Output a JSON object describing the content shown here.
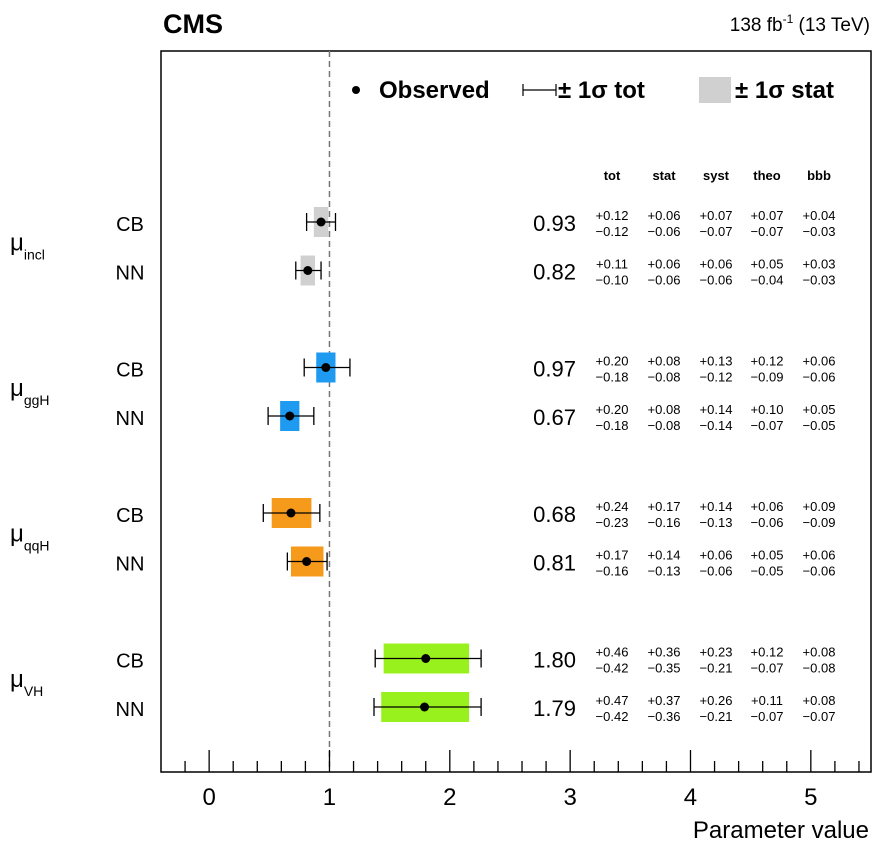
{
  "header": {
    "experiment": "CMS",
    "lumi_base": "138 fb",
    "lumi_sup": "-1",
    "lumi_energy": " (13 TeV)"
  },
  "legend": {
    "placement": "top",
    "observed": "Observed",
    "tot": "± 1σ tot",
    "stat": "± 1σ stat"
  },
  "columns": [
    "tot",
    "stat",
    "syst",
    "theo",
    "bbb"
  ],
  "chart_data": {
    "type": "scatter",
    "xlabel": "Parameter value",
    "xlim": [
      -0.4,
      5.5
    ],
    "xticks": [
      0,
      1,
      2,
      3,
      4,
      5
    ],
    "xtick_labels": [
      "0",
      "1",
      "2",
      "3",
      "4",
      "5"
    ],
    "reference_line": 1,
    "groups": [
      {
        "param": "μ",
        "sub": "incl",
        "color": "#d0d0d0",
        "rows": [
          {
            "label": "CB",
            "value": 0.93,
            "value_text": "0.93",
            "up": [
              "+0.12",
              "+0.06",
              "+0.07",
              "+0.07",
              "+0.04"
            ],
            "down": [
              "−0.12",
              "−0.06",
              "−0.07",
              "−0.07",
              "−0.03"
            ],
            "tot": [
              0.12,
              0.12
            ],
            "stat": [
              0.06,
              0.06
            ]
          },
          {
            "label": "NN",
            "value": 0.82,
            "value_text": "0.82",
            "up": [
              "+0.11",
              "+0.06",
              "+0.06",
              "+0.05",
              "+0.03"
            ],
            "down": [
              "−0.10",
              "−0.06",
              "−0.06",
              "−0.04",
              "−0.03"
            ],
            "tot": [
              0.11,
              0.1
            ],
            "stat": [
              0.06,
              0.06
            ]
          }
        ]
      },
      {
        "param": "μ",
        "sub": "ggH",
        "color": "#1e9bf0",
        "rows": [
          {
            "label": "CB",
            "value": 0.97,
            "value_text": "0.97",
            "up": [
              "+0.20",
              "+0.08",
              "+0.13",
              "+0.12",
              "+0.06"
            ],
            "down": [
              "−0.18",
              "−0.08",
              "−0.12",
              "−0.09",
              "−0.06"
            ],
            "tot": [
              0.2,
              0.18
            ],
            "stat": [
              0.08,
              0.08
            ]
          },
          {
            "label": "NN",
            "value": 0.67,
            "value_text": "0.67",
            "up": [
              "+0.20",
              "+0.08",
              "+0.14",
              "+0.10",
              "+0.05"
            ],
            "down": [
              "−0.18",
              "−0.08",
              "−0.14",
              "−0.07",
              "−0.05"
            ],
            "tot": [
              0.2,
              0.18
            ],
            "stat": [
              0.08,
              0.08
            ]
          }
        ]
      },
      {
        "param": "μ",
        "sub": "qqH",
        "color": "#f59a1b",
        "rows": [
          {
            "label": "CB",
            "value": 0.68,
            "value_text": "0.68",
            "up": [
              "+0.24",
              "+0.17",
              "+0.14",
              "+0.06",
              "+0.09"
            ],
            "down": [
              "−0.23",
              "−0.16",
              "−0.13",
              "−0.06",
              "−0.09"
            ],
            "tot": [
              0.24,
              0.23
            ],
            "stat": [
              0.17,
              0.16
            ]
          },
          {
            "label": "NN",
            "value": 0.81,
            "value_text": "0.81",
            "up": [
              "+0.17",
              "+0.14",
              "+0.06",
              "+0.05",
              "+0.06"
            ],
            "down": [
              "−0.16",
              "−0.13",
              "−0.06",
              "−0.05",
              "−0.06"
            ],
            "tot": [
              0.17,
              0.16
            ],
            "stat": [
              0.14,
              0.13
            ]
          }
        ]
      },
      {
        "param": "μ",
        "sub": "VH",
        "color": "#98f01c",
        "rows": [
          {
            "label": "CB",
            "value": 1.8,
            "value_text": "1.80",
            "up": [
              "+0.46",
              "+0.36",
              "+0.23",
              "+0.12",
              "+0.08"
            ],
            "down": [
              "−0.42",
              "−0.35",
              "−0.21",
              "−0.07",
              "−0.08"
            ],
            "tot": [
              0.46,
              0.42
            ],
            "stat": [
              0.36,
              0.35
            ]
          },
          {
            "label": "NN",
            "value": 1.79,
            "value_text": "1.79",
            "up": [
              "+0.47",
              "+0.37",
              "+0.26",
              "+0.11",
              "+0.08"
            ],
            "down": [
              "−0.42",
              "−0.36",
              "−0.21",
              "−0.07",
              "−0.07"
            ],
            "tot": [
              0.47,
              0.42
            ],
            "stat": [
              0.37,
              0.36
            ]
          }
        ]
      }
    ]
  }
}
